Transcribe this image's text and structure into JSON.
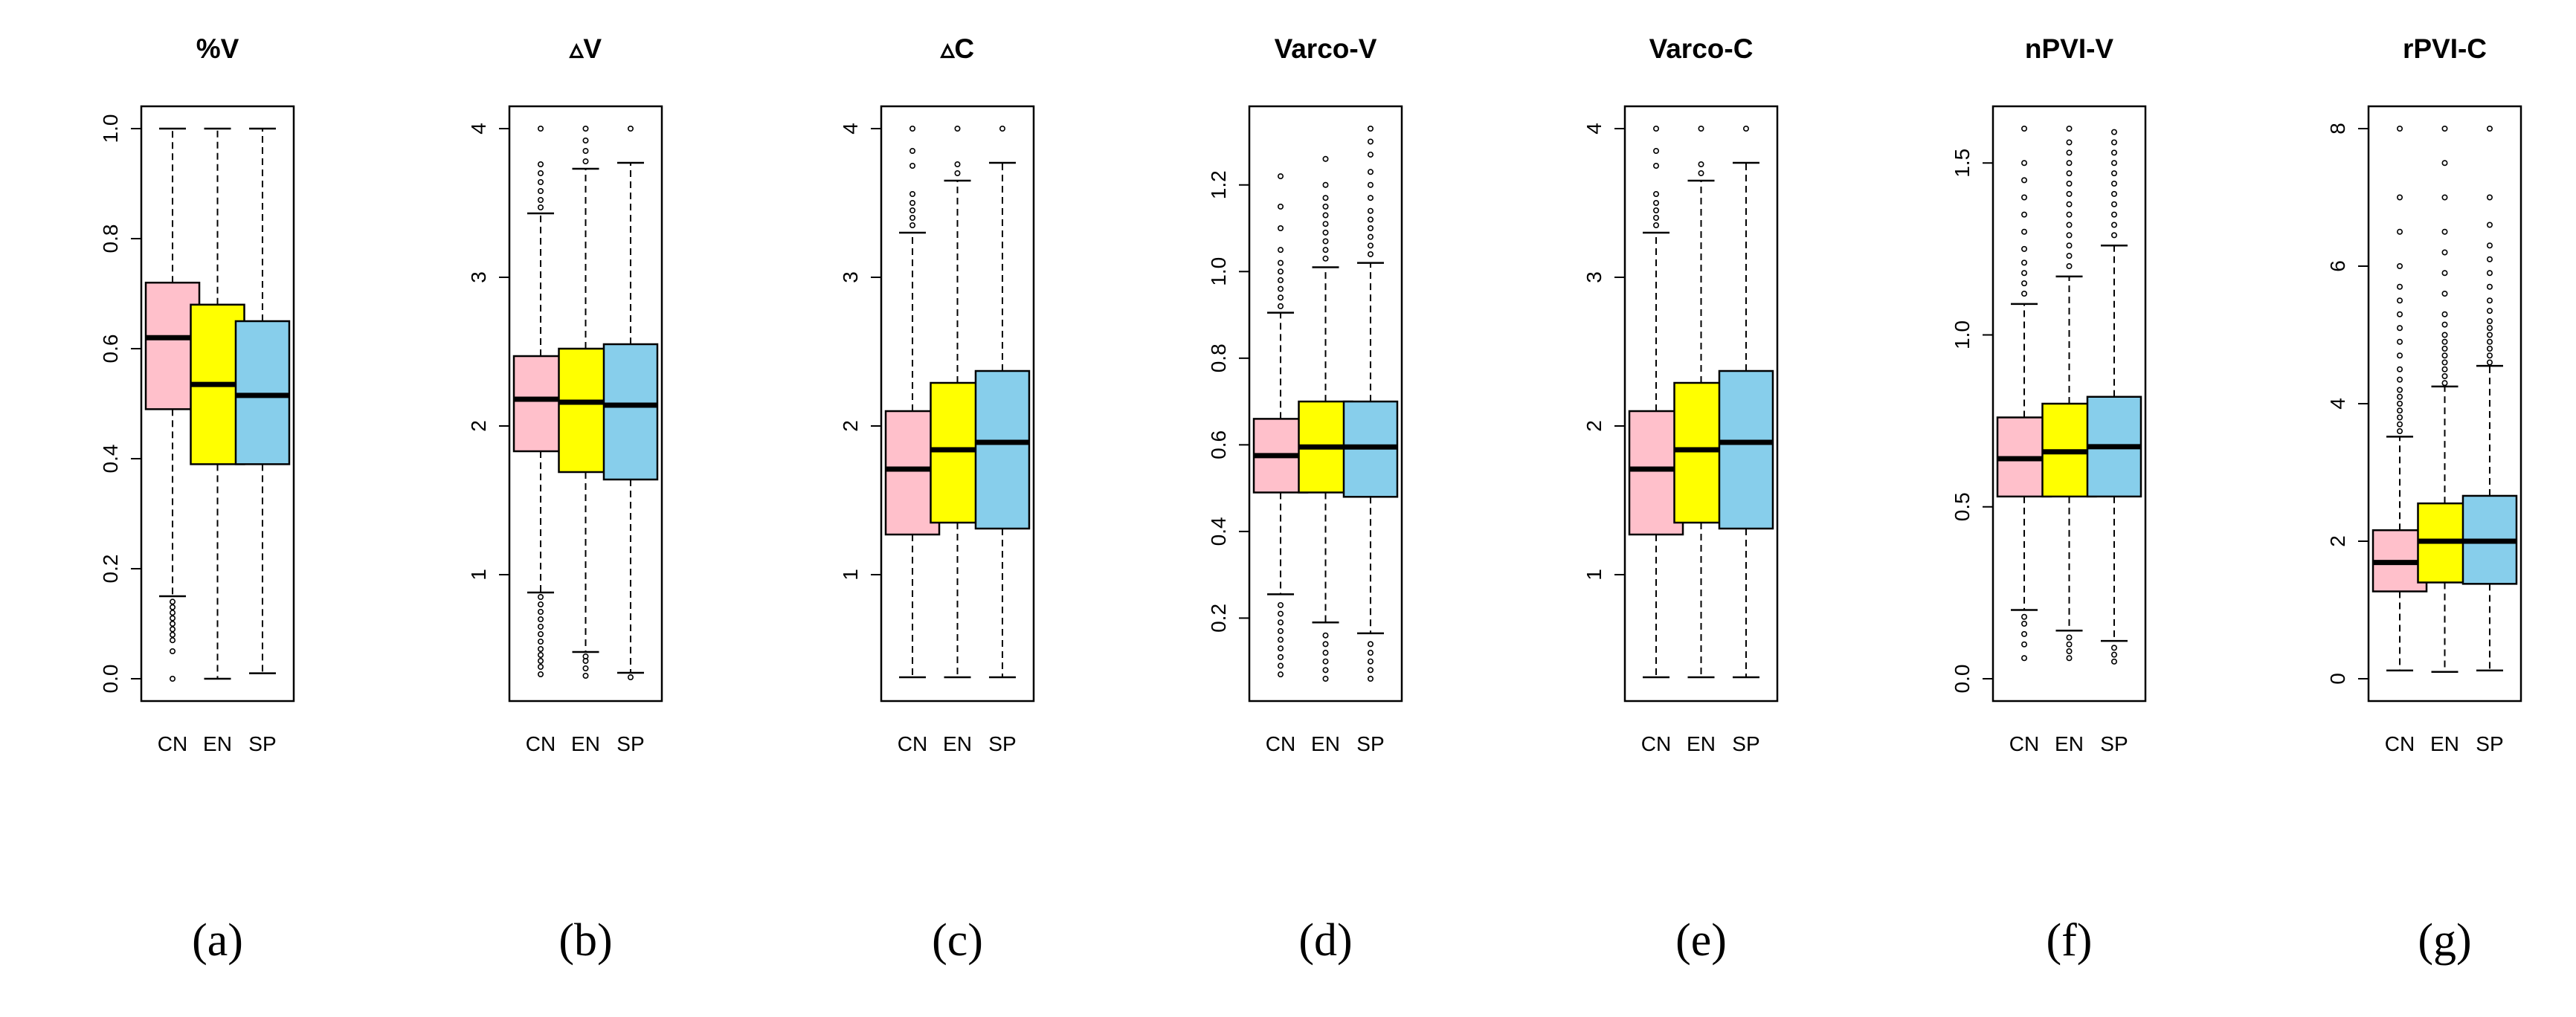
{
  "figure": {
    "captions": [
      "(a)",
      "(b)",
      "(c)",
      "(d)",
      "(e)",
      "(f)",
      "(g)"
    ]
  },
  "colors": {
    "CN": "#FFC0CB",
    "EN": "#FFFF00",
    "SP": "#87CEEB"
  },
  "chart_data": [
    {
      "type": "boxplot",
      "title": "%V",
      "categories": [
        "CN",
        "EN",
        "SP"
      ],
      "ylim": [
        0,
        1.0
      ],
      "yticks": [
        "0.0",
        "0.2",
        "0.4",
        "0.6",
        "0.8",
        "1.0"
      ],
      "tick_values": [
        0,
        0.2,
        0.4,
        0.6,
        0.8,
        1.0
      ],
      "boxes": [
        {
          "name": "CN",
          "q1": 0.49,
          "median": 0.62,
          "q3": 0.72,
          "whisker_low": 0.15,
          "whisker_high": 1.0,
          "outliers": [
            0.0,
            0.05,
            0.07,
            0.08,
            0.09,
            0.1,
            0.11,
            0.12,
            0.13,
            0.14
          ]
        },
        {
          "name": "EN",
          "q1": 0.39,
          "median": 0.535,
          "q3": 0.68,
          "whisker_low": 0.0,
          "whisker_high": 1.0,
          "outliers": []
        },
        {
          "name": "SP",
          "q1": 0.39,
          "median": 0.515,
          "q3": 0.65,
          "whisker_low": 0.01,
          "whisker_high": 1.0,
          "outliers": []
        }
      ]
    },
    {
      "type": "boxplot",
      "title": "▵V",
      "categories": [
        "CN",
        "EN",
        "SP"
      ],
      "ylim": [
        0.3,
        4.0
      ],
      "yticks": [
        "1",
        "2",
        "3",
        "4"
      ],
      "tick_values": [
        1,
        2,
        3,
        4
      ],
      "boxes": [
        {
          "name": "CN",
          "q1": 1.83,
          "median": 2.18,
          "q3": 2.47,
          "whisker_low": 0.88,
          "whisker_high": 3.43,
          "outliers": [
            0.33,
            0.38,
            0.42,
            0.46,
            0.5,
            0.55,
            0.6,
            0.65,
            0.7,
            0.75,
            0.8,
            0.85,
            3.47,
            3.52,
            3.58,
            3.64,
            3.7,
            3.76,
            4.0
          ]
        },
        {
          "name": "EN",
          "q1": 1.69,
          "median": 2.16,
          "q3": 2.52,
          "whisker_low": 0.48,
          "whisker_high": 3.73,
          "outliers": [
            0.32,
            0.37,
            0.42,
            0.45,
            3.78,
            3.85,
            3.92,
            4.0
          ]
        },
        {
          "name": "SP",
          "q1": 1.64,
          "median": 2.14,
          "q3": 2.55,
          "whisker_low": 0.34,
          "whisker_high": 3.77,
          "outliers": [
            0.31,
            4.0
          ]
        }
      ]
    },
    {
      "type": "boxplot",
      "title": "▵C",
      "categories": [
        "CN",
        "EN",
        "SP"
      ],
      "ylim": [
        0.3,
        4.0
      ],
      "yticks": [
        "1",
        "2",
        "3",
        "4"
      ],
      "tick_values": [
        1,
        2,
        3,
        4
      ],
      "boxes": [
        {
          "name": "CN",
          "q1": 1.27,
          "median": 1.71,
          "q3": 2.1,
          "whisker_low": 0.31,
          "whisker_high": 3.3,
          "outliers": [
            3.35,
            3.4,
            3.45,
            3.5,
            3.56,
            3.75,
            3.85,
            4.0
          ]
        },
        {
          "name": "EN",
          "q1": 1.35,
          "median": 1.84,
          "q3": 2.29,
          "whisker_low": 0.31,
          "whisker_high": 3.65,
          "outliers": [
            3.7,
            3.76,
            4.0
          ]
        },
        {
          "name": "SP",
          "q1": 1.31,
          "median": 1.89,
          "q3": 2.37,
          "whisker_low": 0.31,
          "whisker_high": 3.77,
          "outliers": [
            4.0
          ]
        }
      ]
    },
    {
      "type": "boxplot",
      "title": "Varco-V",
      "categories": [
        "CN",
        "EN",
        "SP"
      ],
      "ylim": [
        0.06,
        1.33
      ],
      "yticks": [
        "0.2",
        "0.4",
        "0.6",
        "0.8",
        "1.0",
        "1.2"
      ],
      "tick_values": [
        0.2,
        0.4,
        0.6,
        0.8,
        1.0,
        1.2
      ],
      "boxes": [
        {
          "name": "CN",
          "q1": 0.49,
          "median": 0.575,
          "q3": 0.66,
          "whisker_low": 0.255,
          "whisker_high": 0.905,
          "outliers": [
            0.07,
            0.09,
            0.11,
            0.13,
            0.15,
            0.17,
            0.19,
            0.21,
            0.23,
            0.92,
            0.94,
            0.96,
            0.98,
            1.0,
            1.02,
            1.05,
            1.1,
            1.15,
            1.22
          ]
        },
        {
          "name": "EN",
          "q1": 0.49,
          "median": 0.595,
          "q3": 0.7,
          "whisker_low": 0.19,
          "whisker_high": 1.01,
          "outliers": [
            0.06,
            0.08,
            0.1,
            0.12,
            0.14,
            0.16,
            1.03,
            1.05,
            1.07,
            1.09,
            1.11,
            1.13,
            1.15,
            1.17,
            1.2,
            1.26
          ]
        },
        {
          "name": "SP",
          "q1": 0.48,
          "median": 0.595,
          "q3": 0.7,
          "whisker_low": 0.165,
          "whisker_high": 1.02,
          "outliers": [
            0.06,
            0.08,
            0.1,
            0.12,
            0.14,
            1.04,
            1.06,
            1.08,
            1.1,
            1.12,
            1.14,
            1.17,
            1.2,
            1.23,
            1.27,
            1.3,
            1.33
          ]
        }
      ]
    },
    {
      "type": "boxplot",
      "title": "Varco-C",
      "categories": [
        "CN",
        "EN",
        "SP"
      ],
      "ylim": [
        0.3,
        4.0
      ],
      "yticks": [
        "1",
        "2",
        "3",
        "4"
      ],
      "tick_values": [
        1,
        2,
        3,
        4
      ],
      "boxes": [
        {
          "name": "CN",
          "q1": 1.27,
          "median": 1.71,
          "q3": 2.1,
          "whisker_low": 0.31,
          "whisker_high": 3.3,
          "outliers": [
            3.35,
            3.4,
            3.45,
            3.5,
            3.56,
            3.75,
            3.85,
            4.0
          ]
        },
        {
          "name": "EN",
          "q1": 1.35,
          "median": 1.84,
          "q3": 2.29,
          "whisker_low": 0.31,
          "whisker_high": 3.65,
          "outliers": [
            3.7,
            3.76,
            4.0
          ]
        },
        {
          "name": "SP",
          "q1": 1.31,
          "median": 1.89,
          "q3": 2.37,
          "whisker_low": 0.31,
          "whisker_high": 3.77,
          "outliers": [
            4.0
          ]
        }
      ]
    },
    {
      "type": "boxplot",
      "title": "nPVI-V",
      "categories": [
        "CN",
        "EN",
        "SP"
      ],
      "ylim": [
        0.0,
        1.6
      ],
      "yticks": [
        "0.0",
        "0.5",
        "1.0",
        "1.5"
      ],
      "tick_values": [
        0,
        0.5,
        1.0,
        1.5
      ],
      "boxes": [
        {
          "name": "CN",
          "q1": 0.53,
          "median": 0.64,
          "q3": 0.76,
          "whisker_low": 0.2,
          "whisker_high": 1.09,
          "outliers": [
            0.06,
            0.1,
            0.13,
            0.16,
            0.18,
            1.12,
            1.15,
            1.18,
            1.21,
            1.25,
            1.3,
            1.35,
            1.4,
            1.45,
            1.5,
            1.6
          ]
        },
        {
          "name": "EN",
          "q1": 0.53,
          "median": 0.66,
          "q3": 0.8,
          "whisker_low": 0.14,
          "whisker_high": 1.17,
          "outliers": [
            0.06,
            0.08,
            0.1,
            0.12,
            1.2,
            1.23,
            1.26,
            1.29,
            1.32,
            1.35,
            1.38,
            1.41,
            1.44,
            1.47,
            1.5,
            1.53,
            1.56,
            1.6
          ]
        },
        {
          "name": "SP",
          "q1": 0.53,
          "median": 0.675,
          "q3": 0.82,
          "whisker_low": 0.11,
          "whisker_high": 1.26,
          "outliers": [
            0.05,
            0.07,
            0.09,
            1.29,
            1.32,
            1.35,
            1.38,
            1.41,
            1.44,
            1.47,
            1.5,
            1.53,
            1.56,
            1.59
          ]
        }
      ]
    },
    {
      "type": "boxplot",
      "title": "rPVI-C",
      "categories": [
        "CN",
        "EN",
        "SP"
      ],
      "ylim": [
        0.0,
        8.0
      ],
      "yticks": [
        "0",
        "2",
        "4",
        "6",
        "8"
      ],
      "tick_values": [
        0,
        2,
        4,
        6,
        8
      ],
      "boxes": [
        {
          "name": "CN",
          "q1": 1.27,
          "median": 1.69,
          "q3": 2.16,
          "whisker_low": 0.12,
          "whisker_high": 3.52,
          "outliers": [
            3.6,
            3.7,
            3.8,
            3.9,
            4.0,
            4.1,
            4.2,
            4.35,
            4.5,
            4.7,
            4.9,
            5.1,
            5.3,
            5.5,
            5.7,
            6.0,
            6.5,
            7.0,
            8.0
          ]
        },
        {
          "name": "EN",
          "q1": 1.4,
          "median": 2.0,
          "q3": 2.55,
          "whisker_low": 0.1,
          "whisker_high": 4.25,
          "outliers": [
            4.3,
            4.4,
            4.5,
            4.6,
            4.7,
            4.8,
            4.9,
            5.0,
            5.15,
            5.3,
            5.6,
            5.9,
            6.2,
            6.5,
            7.0,
            7.5,
            8.0
          ]
        },
        {
          "name": "SP",
          "q1": 1.38,
          "median": 2.0,
          "q3": 2.66,
          "whisker_low": 0.12,
          "whisker_high": 4.55,
          "outliers": [
            4.6,
            4.7,
            4.8,
            4.9,
            5.0,
            5.1,
            5.2,
            5.35,
            5.5,
            5.7,
            5.9,
            6.1,
            6.3,
            6.6,
            7.0,
            8.0
          ]
        }
      ]
    }
  ]
}
